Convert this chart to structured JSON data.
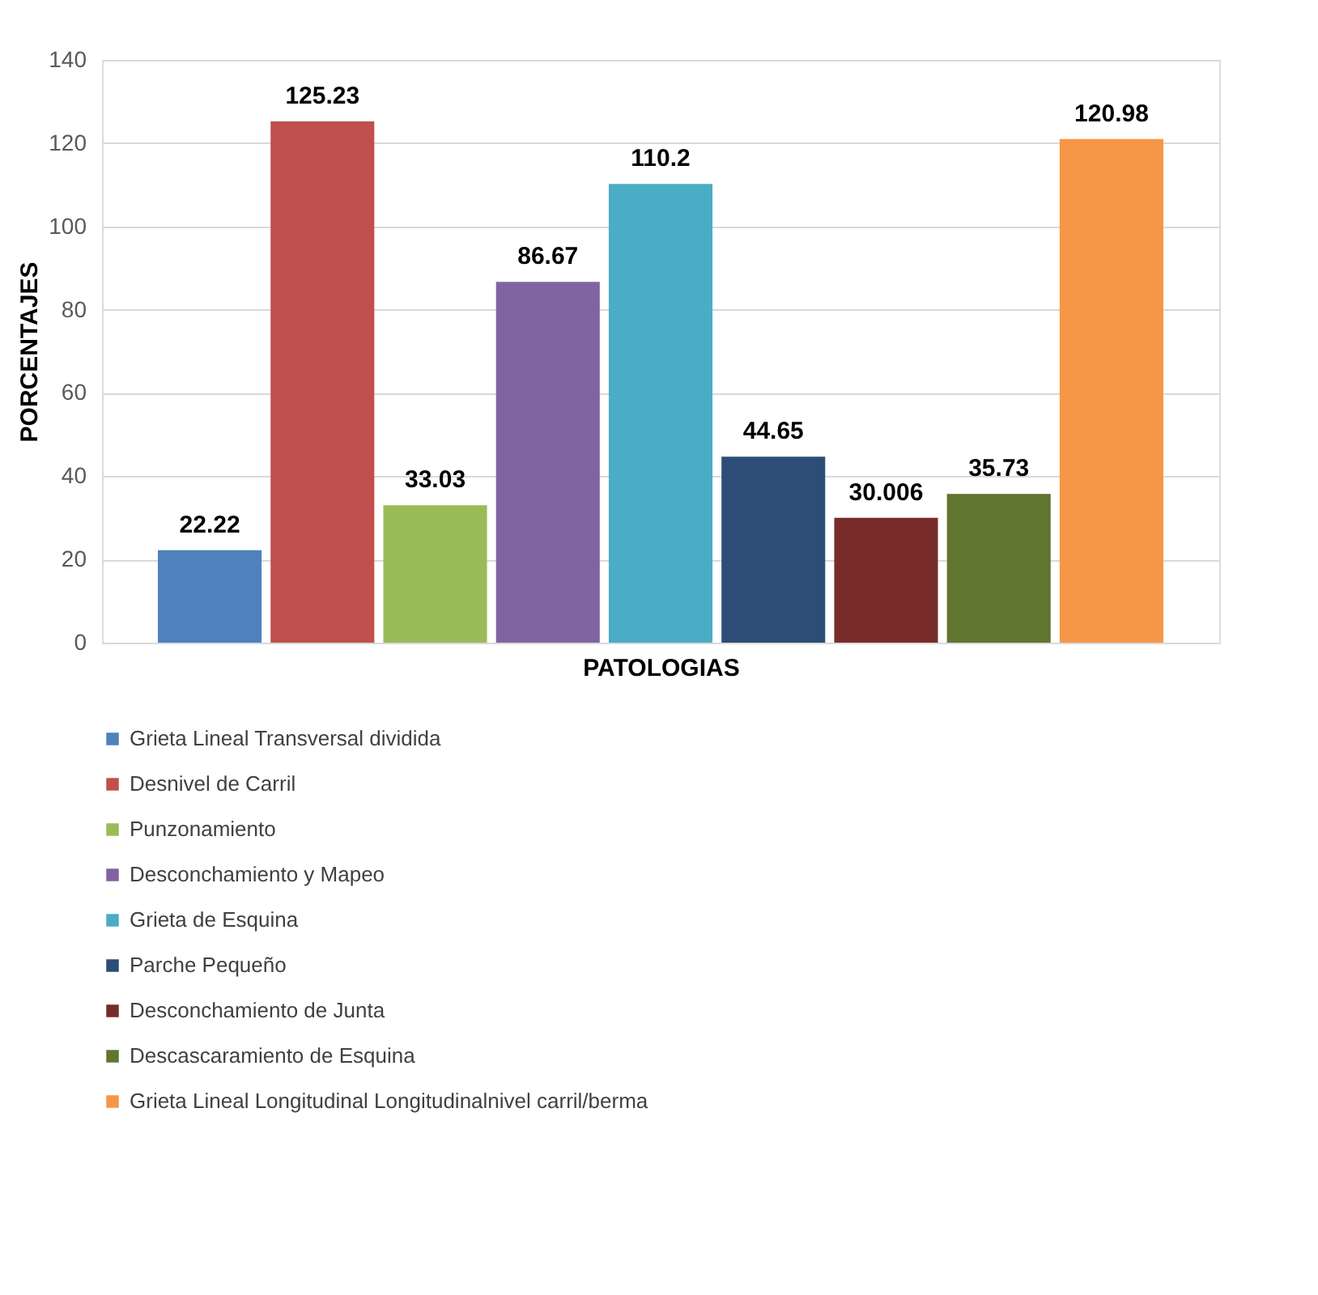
{
  "chart_data": {
    "type": "bar",
    "xlabel": "PATOLOGIAS",
    "ylabel": "PORCENTAJES",
    "categories": [
      null
    ],
    "series": [
      {
        "name": "Grieta Lineal Transversal dividida",
        "color": "#4f81bd",
        "values": [
          22.22
        ]
      },
      {
        "name": "Desnivel de Carril",
        "color": "#c0504d",
        "values": [
          125.23
        ]
      },
      {
        "name": "Punzonamiento",
        "color": "#9bbb59",
        "values": [
          33.03
        ]
      },
      {
        "name": "Desconchamiento y Mapeo",
        "color": "#8064a2",
        "values": [
          86.67
        ]
      },
      {
        "name": "Grieta de Esquina",
        "color": "#4bacc6",
        "values": [
          110.2
        ]
      },
      {
        "name": "Parche Pequeño",
        "color": "#2c4d75",
        "values": [
          44.65
        ]
      },
      {
        "name": "Desconchamiento de Junta",
        "color": "#772c2a",
        "values": [
          30.006
        ]
      },
      {
        "name": "Descascaramiento de Esquina",
        "color": "#5f7530",
        "values": [
          35.73
        ]
      },
      {
        "name": "Grieta Lineal Longitudinal Longitudinalnivel carril/berma",
        "color": "#f79646",
        "values": [
          120.98
        ]
      }
    ],
    "ylim": [
      0,
      140
    ],
    "yticks": [
      0,
      20,
      40,
      60,
      80,
      100,
      120,
      140
    ],
    "grid": "y",
    "legend": "bottom",
    "data_labels": true
  }
}
